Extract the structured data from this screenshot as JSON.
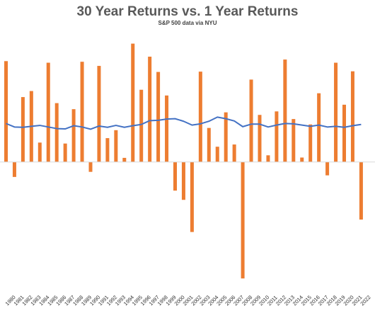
{
  "chart_data": {
    "type": "bar",
    "title": "30 Year Returns vs. 1 Year Returns",
    "subtitle": "S&P 500 data via NYU",
    "categories": [
      "1980",
      "1981",
      "1982",
      "1983",
      "1984",
      "1985",
      "1986",
      "1987",
      "1988",
      "1989",
      "1990",
      "1991",
      "1992",
      "1993",
      "1994",
      "1995",
      "1996",
      "1997",
      "1998",
      "1999",
      "2000",
      "2001",
      "2002",
      "2003",
      "2004",
      "2005",
      "2006",
      "2007",
      "2008",
      "2009",
      "2010",
      "2011",
      "2012",
      "2013",
      "2014",
      "2015",
      "2016",
      "2017",
      "2018",
      "2019",
      "2020",
      "2021",
      "2022"
    ],
    "series": [
      {
        "chart_type": "bar",
        "color": "#ED7D31",
        "values": [
          31.7,
          -4.7,
          20.4,
          22.3,
          6.1,
          31.2,
          18.5,
          5.8,
          16.6,
          31.5,
          -3.1,
          30.2,
          7.5,
          10.0,
          1.3,
          37.2,
          22.7,
          33.1,
          28.3,
          20.9,
          -9.0,
          -11.9,
          -22.0,
          28.4,
          10.7,
          4.8,
          15.6,
          5.5,
          -36.6,
          25.9,
          14.8,
          2.1,
          15.9,
          32.2,
          13.5,
          1.4,
          11.8,
          21.6,
          -4.2,
          31.2,
          18.0,
          28.5,
          -18.1
        ]
      },
      {
        "chart_type": "line",
        "color": "#4472C4",
        "values": [
          12.1,
          11.0,
          10.9,
          11.2,
          11.5,
          11.0,
          10.5,
          10.4,
          11.4,
          11.0,
          10.3,
          11.3,
          10.9,
          11.5,
          10.9,
          11.4,
          11.8,
          13.0,
          13.1,
          13.5,
          13.6,
          12.8,
          11.6,
          12.0,
          12.8,
          14.1,
          13.6,
          12.9,
          11.1,
          11.9,
          11.9,
          11.0,
          11.6,
          12.1,
          12.0,
          11.6,
          11.2,
          11.6,
          11.0,
          11.2,
          10.9,
          11.4,
          11.8
        ]
      }
    ],
    "ylim": [
      -37,
      38
    ],
    "grid": false
  }
}
